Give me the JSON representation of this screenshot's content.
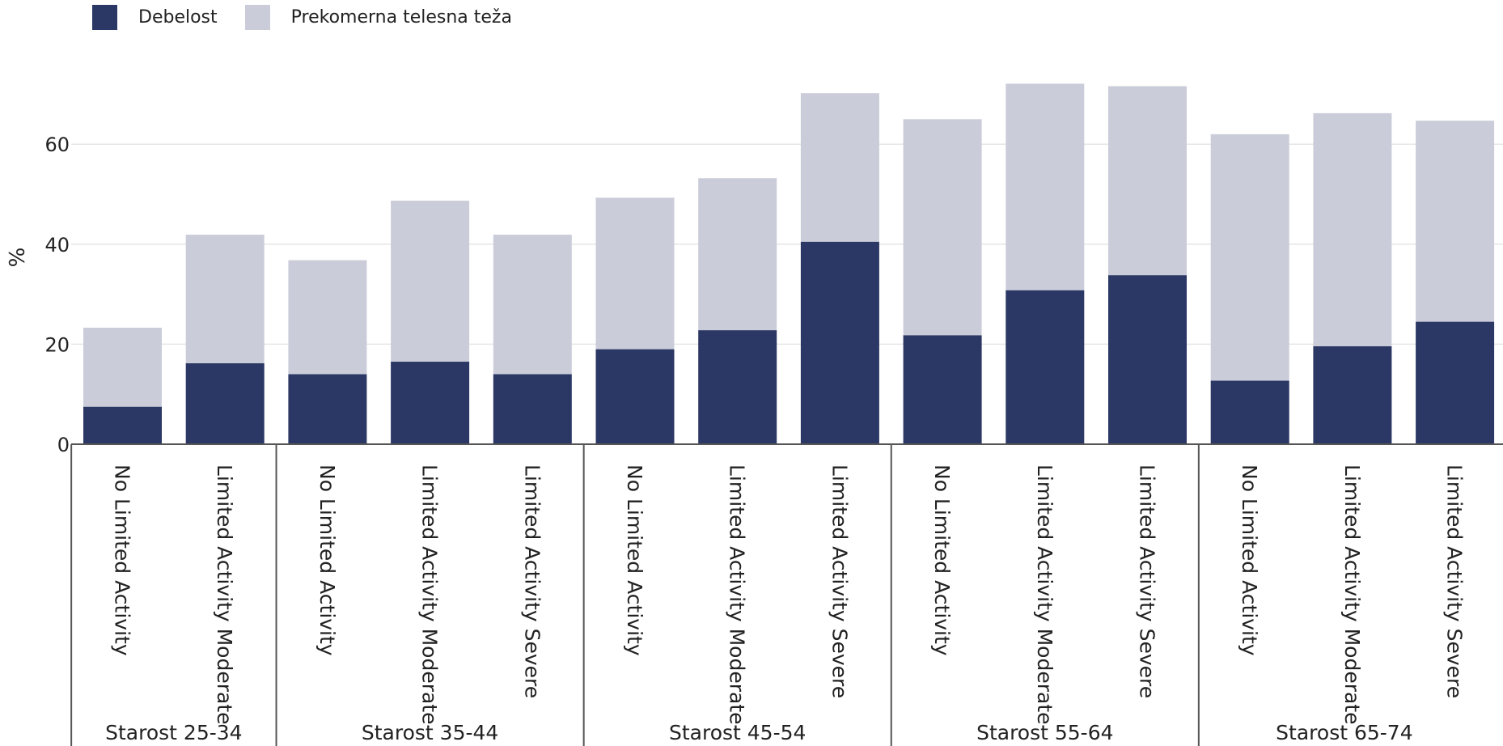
{
  "chart_data": {
    "type": "bar",
    "stacked": true,
    "title": "",
    "xlabel": "",
    "ylabel": "%",
    "ylim": [
      0,
      76
    ],
    "yticks": [
      0,
      20,
      40,
      60
    ],
    "grid": "horizontal",
    "legend_position": "top-left",
    "series": [
      {
        "name": "Debelost",
        "color": "#2b3764",
        "values": [
          7.5,
          16.2,
          14.0,
          16.5,
          14.0,
          19.0,
          22.8,
          40.5,
          21.8,
          30.8,
          33.8,
          12.7,
          19.6,
          24.5
        ]
      },
      {
        "name": "Prekomerna telesna teža",
        "color": "#cacdd9",
        "values": [
          15.8,
          25.7,
          22.8,
          32.2,
          27.9,
          30.3,
          30.4,
          29.7,
          43.2,
          41.3,
          37.8,
          49.3,
          46.6,
          40.2
        ]
      }
    ],
    "groups": [
      {
        "label": "Starost 25-34",
        "categories": [
          "No Limited Activity",
          "Limited Activity Moderate"
        ]
      },
      {
        "label": "Starost 35-44",
        "categories": [
          "No Limited Activity",
          "Limited Activity Moderate",
          "Limited Activity Severe"
        ]
      },
      {
        "label": "Starost 45-54",
        "categories": [
          "No Limited Activity",
          "Limited Activity Moderate",
          "Limited Activity Severe"
        ]
      },
      {
        "label": "Starost 55-64",
        "categories": [
          "No Limited Activity",
          "Limited Activity Moderate",
          "Limited Activity Severe"
        ]
      },
      {
        "label": "Starost 65-74",
        "categories": [
          "No Limited Activity",
          "Limited Activity Moderate",
          "Limited Activity Severe"
        ]
      }
    ]
  }
}
